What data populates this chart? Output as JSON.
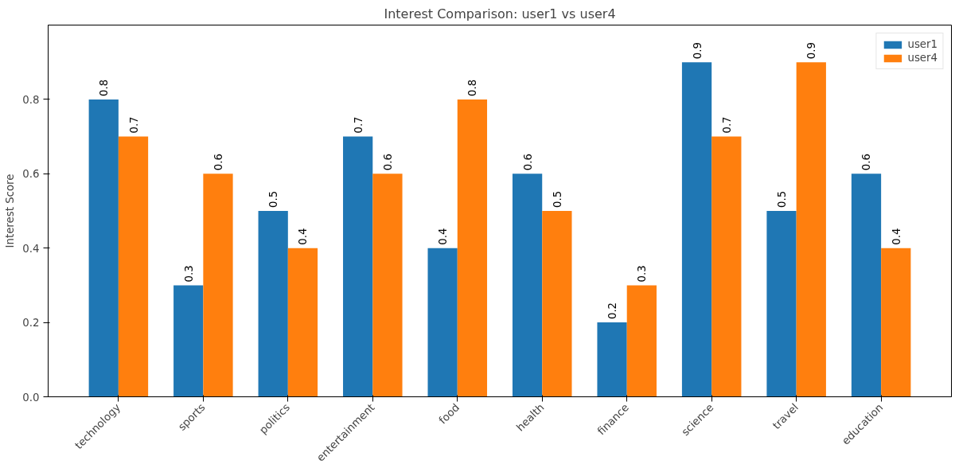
{
  "chart_data": {
    "type": "bar",
    "title": "Interest Comparison: user1 vs user4",
    "ylabel": "Interest Score",
    "categories": [
      "technology",
      "sports",
      "politics",
      "entertainment",
      "food",
      "health",
      "finance",
      "science",
      "travel",
      "education"
    ],
    "series": [
      {
        "name": "user1",
        "color": "#1f77b4",
        "values": [
          0.8,
          0.3,
          0.5,
          0.7,
          0.4,
          0.6,
          0.2,
          0.9,
          0.5,
          0.6
        ]
      },
      {
        "name": "user4",
        "color": "#ff7f0e",
        "values": [
          0.7,
          0.6,
          0.4,
          0.6,
          0.8,
          0.5,
          0.3,
          0.7,
          0.9,
          0.4
        ]
      }
    ],
    "ylim": [
      0,
      1.0
    ],
    "yticks": [
      {
        "value": 0,
        "label": "0.0"
      },
      {
        "value": 0.2,
        "label": "0.2"
      },
      {
        "value": 0.4,
        "label": "0.4"
      },
      {
        "value": 0.6,
        "label": "0.6"
      },
      {
        "value": 0.8,
        "label": "0.8"
      }
    ],
    "data_labels": true,
    "legend": "top right",
    "grid": false
  }
}
